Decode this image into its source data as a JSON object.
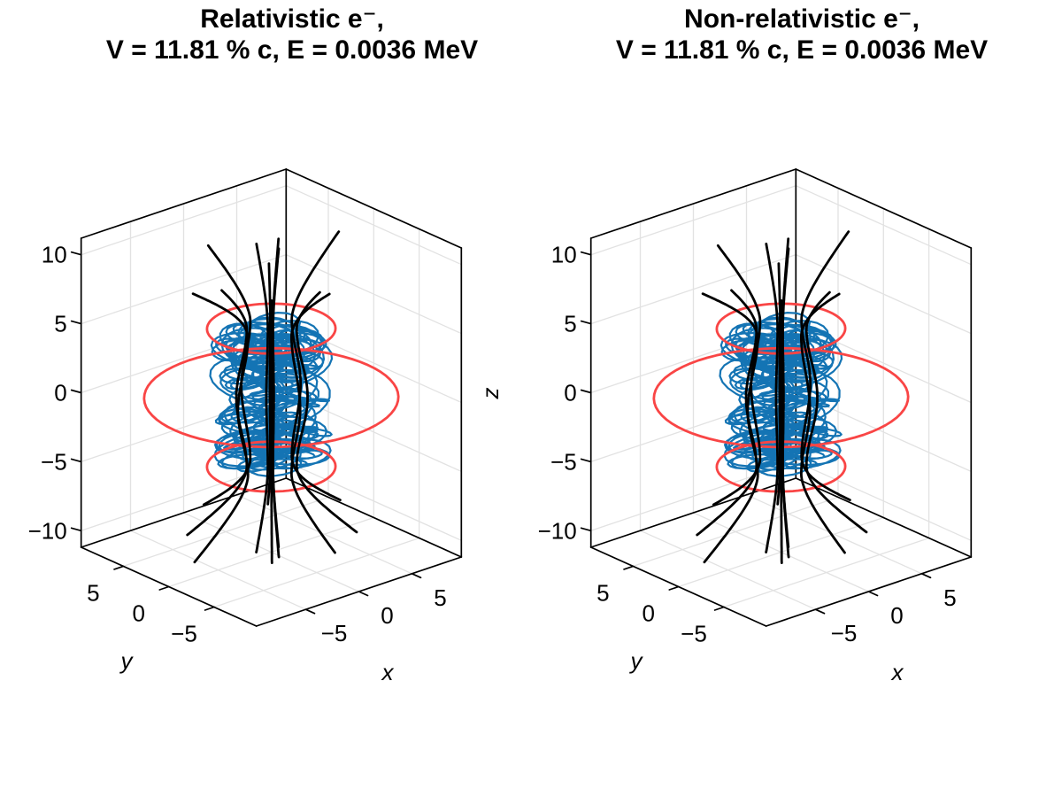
{
  "figure": {
    "background": "#ffffff"
  },
  "colors": {
    "field_line": "#000000",
    "coil": "#f94545",
    "trajectory": "#1474b4",
    "grid": "#e2e2e2",
    "box": "#000000",
    "text": "#000000"
  },
  "subplots": [
    {
      "title": {
        "line1": "Relativistic e⁻,",
        "line2": "V = 11.81 % c, E = 0.0036 MeV"
      }
    },
    {
      "title": {
        "line1": "Non-relativistic e⁻,",
        "line2": "V = 11.81 % c, E = 0.0036 MeV"
      }
    }
  ],
  "chart_data": {
    "type": "line",
    "subtype": "3d-trajectory-magnetic-bottle",
    "description": "Two identical 3D panels comparing a relativistic and a non-relativistic electron trajectory (blue tangle) trapped in a magnetic bottle formed by red current loops; black curves are magnetic field lines.",
    "axes": {
      "xlabel": "x",
      "ylabel": "y",
      "zlabel": "z",
      "xlim": [
        -9.65,
        9.65
      ],
      "ylim": [
        -9.65,
        9.65
      ],
      "zlim": [
        -11.2,
        11.2
      ],
      "xticks": [
        -5,
        0,
        5
      ],
      "yticks": [
        -5,
        0,
        5
      ],
      "zticks": [
        -10,
        -5,
        0,
        5,
        10
      ],
      "grid": true
    },
    "series": [
      {
        "name": "current-coils",
        "color": "#f94545",
        "geometry": "circles",
        "circles": [
          {
            "z": 5,
            "r": 4.6
          },
          {
            "z": 0,
            "r": 9.1
          },
          {
            "z": -5,
            "r": 4.6
          }
        ]
      },
      {
        "name": "magnetic-field-lines",
        "color": "#000000",
        "geometry": "field-lines",
        "radius_profile": {
          "base": 0.7,
          "bulge": 0.3,
          "bulge_period": 10,
          "flare_coef": 1.45,
          "flare_start": 5,
          "flare_scale": 5,
          "flare_exp": 1.7
        },
        "max_radius": 9.2,
        "inner": {
          "r0": 0.35,
          "azimuths_deg": [
            20,
            140,
            260
          ],
          "z_span": [
            -11.2,
            11.2
          ]
        },
        "outer": [
          {
            "az": 10,
            "r0": 3.3,
            "z0": -9.8,
            "z1": 9.7
          },
          {
            "az": 52,
            "r0": 2.3,
            "z0": -9.9,
            "z1": 8.3
          },
          {
            "az": 95,
            "r0": 3.0,
            "z0": -9.6,
            "z1": 9.4
          },
          {
            "az": 140,
            "r0": 2.5,
            "z0": -9.9,
            "z1": 7.9
          },
          {
            "az": 185,
            "r0": 3.4,
            "z0": -9.7,
            "z1": 9.8
          },
          {
            "az": 230,
            "r0": 2.2,
            "z0": -9.9,
            "z1": 8.6
          },
          {
            "az": 275,
            "r0": 2.9,
            "z0": -9.5,
            "z1": 9.2
          },
          {
            "az": 320,
            "r0": 2.6,
            "z0": -9.8,
            "z1": 7.6
          }
        ]
      },
      {
        "name": "electron-trajectory",
        "color": "#1474b4",
        "geometry": "parametric-tangle",
        "points": 1900,
        "dt": 0.33,
        "gyro": {
          "radius": 2.05,
          "freq": 1.0,
          "phase": 0.0
        },
        "drift": {
          "radius": 1.8,
          "freq": 0.021,
          "phase": 0.6
        },
        "bounce": {
          "amp": 4.2,
          "freq": 0.104,
          "phase": 0.4
        },
        "bounce2": {
          "amp": 0.35,
          "freq": 0.9
        },
        "wobble": {
          "amp": 0.5,
          "freq1": 0.37,
          "freq2": 0.41
        }
      }
    ]
  }
}
